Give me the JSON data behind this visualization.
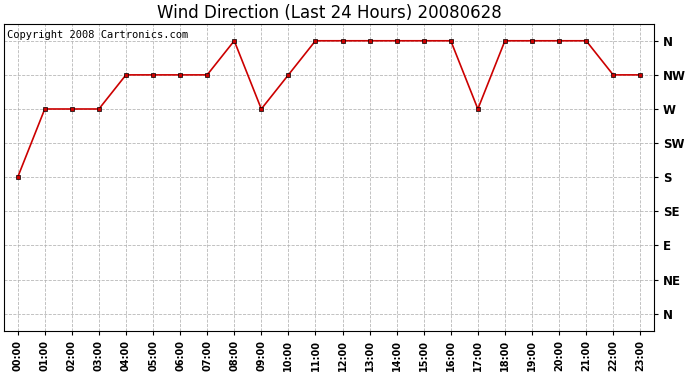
{
  "title": "Wind Direction (Last 24 Hours) 20080628",
  "copyright_text": "Copyright 2008 Cartronics.com",
  "hours": [
    0,
    1,
    2,
    3,
    4,
    5,
    6,
    7,
    8,
    9,
    10,
    11,
    12,
    13,
    14,
    15,
    16,
    17,
    18,
    19,
    20,
    21,
    22,
    23
  ],
  "hour_labels": [
    "00:00",
    "01:00",
    "02:00",
    "03:00",
    "04:00",
    "05:00",
    "06:00",
    "07:00",
    "08:00",
    "09:00",
    "10:00",
    "11:00",
    "12:00",
    "13:00",
    "14:00",
    "15:00",
    "16:00",
    "17:00",
    "18:00",
    "19:00",
    "20:00",
    "21:00",
    "22:00",
    "23:00"
  ],
  "wind_values": [
    5,
    7,
    7,
    7,
    8,
    8,
    8,
    8,
    9,
    7,
    8,
    9,
    9,
    9,
    9,
    9,
    9,
    7,
    9,
    9,
    9,
    9,
    8,
    8
  ],
  "ytick_positions": [
    1,
    2,
    3,
    4,
    5,
    6,
    7,
    8,
    9
  ],
  "ytick_labels": [
    "N",
    "NE",
    "E",
    "SE",
    "S",
    "SW",
    "W",
    "NW",
    "N"
  ],
  "line_color": "#cc0000",
  "marker": "s",
  "marker_size": 3,
  "bg_color": "#ffffff",
  "plot_bg_color": "#ffffff",
  "grid_color": "#b0b0b0",
  "title_fontsize": 12,
  "copyright_fontsize": 7.5,
  "ylim_min": 0.5,
  "ylim_max": 9.5
}
